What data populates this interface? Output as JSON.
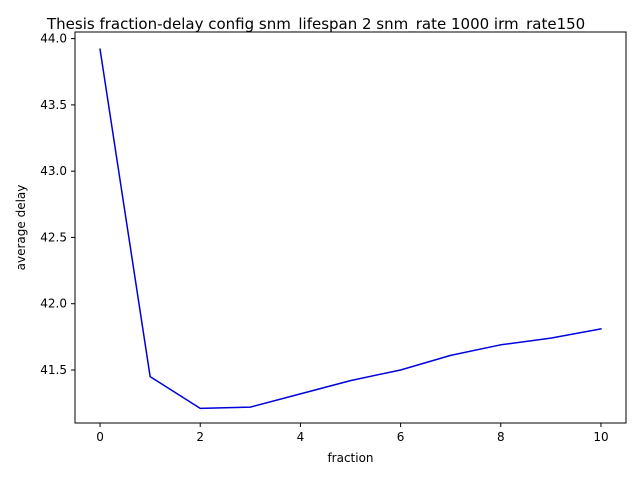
{
  "chart_data": {
    "type": "line",
    "title": "Thesis fraction-delay config snm_lifespan 2 snm_rate 1000 irm_rate150",
    "xlabel": "fraction",
    "ylabel": "average delay",
    "xlim": [
      -0.5,
      10.5
    ],
    "ylim": [
      41.1,
      44.05
    ],
    "xticks": [
      0,
      2,
      4,
      6,
      8,
      10
    ],
    "yticks": [
      41.5,
      42.0,
      42.5,
      43.0,
      43.5,
      44.0
    ],
    "xtick_labels": [
      "0",
      "2",
      "4",
      "6",
      "8",
      "10"
    ],
    "ytick_labels": [
      "41.5",
      "42.0",
      "42.5",
      "43.0",
      "43.5",
      "44.0"
    ],
    "grid": false,
    "legend": "none",
    "series": [
      {
        "color": "#0000dd",
        "x": [
          0,
          1,
          2,
          3,
          4,
          5,
          6,
          7,
          8,
          9,
          10
        ],
        "y": [
          43.92,
          41.45,
          41.21,
          41.22,
          41.32,
          41.42,
          41.5,
          41.61,
          41.69,
          41.74,
          41.81
        ]
      }
    ]
  }
}
